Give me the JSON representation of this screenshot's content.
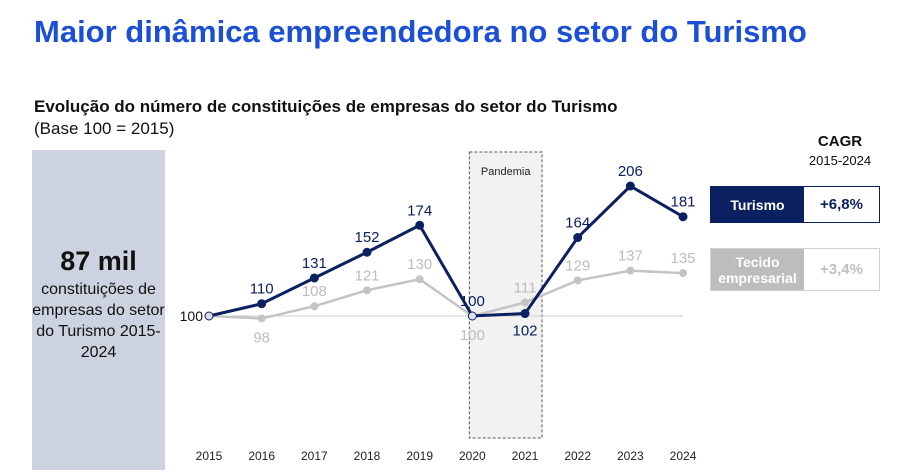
{
  "title": "Maior dinâmica empreendedora no setor do Turismo",
  "left_panel": {
    "value": "87 mil",
    "description": "constituições de empresas do setor do Turismo 2015-2024"
  },
  "cagr": {
    "title": "CAGR",
    "period": "2015-2024"
  },
  "chart_data": {
    "type": "line",
    "title": "Evolução do número de constituições de empresas do setor do Turismo",
    "subtitle": "(Base 100 = 2015)",
    "categories": [
      "2015",
      "2016",
      "2017",
      "2018",
      "2019",
      "2020",
      "2021",
      "2022",
      "2023",
      "2024"
    ],
    "series": [
      {
        "name": "Turismo",
        "values": [
          100,
          110,
          131,
          152,
          174,
          100,
          102,
          164,
          206,
          181
        ],
        "color": "#0b2060",
        "cagr": "+6,8%"
      },
      {
        "name": "Tecido empresarial",
        "values": [
          100,
          98,
          108,
          121,
          130,
          100,
          111,
          129,
          137,
          135
        ],
        "color": "#c4c4c4",
        "cagr": "+3,4%"
      }
    ],
    "baseline": 100,
    "annotation": {
      "label": "Pandemia",
      "from": "2020",
      "to": "2021"
    }
  }
}
